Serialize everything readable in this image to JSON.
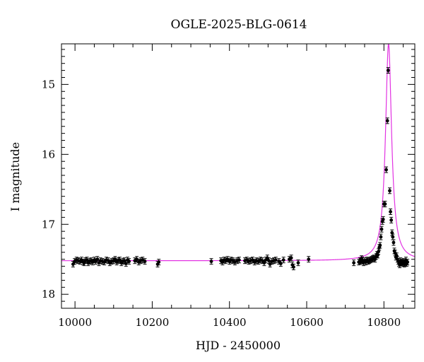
{
  "chart_data": {
    "type": "scatter",
    "title": "OGLE-2025-BLG-0614",
    "xlabel": "HJD - 2450000",
    "ylabel": "I magnitude",
    "xlim": [
      9965,
      10880
    ],
    "ylim": [
      18.2,
      14.42
    ],
    "y_inverted": true,
    "grid": false,
    "x_ticks_major": [
      10000,
      10200,
      10400,
      10600,
      10800
    ],
    "x_tick_labels": [
      "10000",
      "10200",
      "10400",
      "10600",
      "10800"
    ],
    "y_ticks_major": [
      15,
      16,
      17,
      18
    ],
    "y_tick_labels": [
      "15",
      "16",
      "17",
      "18"
    ],
    "model_color": "#e233e2",
    "point_color": "#000000",
    "model": {
      "baseline": 17.52,
      "t0": 10812,
      "peak": 14.42
    },
    "series": [
      {
        "points": [
          [
            9995,
            17.57
          ],
          [
            9999,
            17.53
          ],
          [
            10004,
            17.51
          ],
          [
            10008,
            17.52
          ],
          [
            10013,
            17.53
          ],
          [
            10017,
            17.51
          ],
          [
            10021,
            17.54
          ],
          [
            10024,
            17.55
          ],
          [
            10027,
            17.52
          ],
          [
            10031,
            17.51
          ],
          [
            10034,
            17.55
          ],
          [
            10038,
            17.53
          ],
          [
            10042,
            17.52
          ],
          [
            10046,
            17.54
          ],
          [
            10050,
            17.51
          ],
          [
            10054,
            17.53
          ],
          [
            10058,
            17.5
          ],
          [
            10062,
            17.55
          ],
          [
            10066,
            17.52
          ],
          [
            10071,
            17.53
          ],
          [
            10076,
            17.54
          ],
          [
            10081,
            17.51
          ],
          [
            10086,
            17.52
          ],
          [
            10090,
            17.55
          ],
          [
            10095,
            17.53
          ],
          [
            10100,
            17.52
          ],
          [
            10104,
            17.5
          ],
          [
            10108,
            17.54
          ],
          [
            10112,
            17.52
          ],
          [
            10116,
            17.51
          ],
          [
            10120,
            17.55
          ],
          [
            10124,
            17.53
          ],
          [
            10128,
            17.52
          ],
          [
            10132,
            17.56
          ],
          [
            10136,
            17.51
          ],
          [
            10140,
            17.53
          ],
          [
            10155,
            17.52
          ],
          [
            10160,
            17.5
          ],
          [
            10165,
            17.54
          ],
          [
            10170,
            17.52
          ],
          [
            10175,
            17.51
          ],
          [
            10181,
            17.53
          ],
          [
            10214,
            17.57
          ],
          [
            10217,
            17.54
          ],
          [
            10353,
            17.53
          ],
          [
            10378,
            17.52
          ],
          [
            10382,
            17.54
          ],
          [
            10386,
            17.51
          ],
          [
            10390,
            17.52
          ],
          [
            10395,
            17.5
          ],
          [
            10400,
            17.53
          ],
          [
            10404,
            17.51
          ],
          [
            10409,
            17.52
          ],
          [
            10414,
            17.54
          ],
          [
            10420,
            17.52
          ],
          [
            10425,
            17.51
          ],
          [
            10440,
            17.52
          ],
          [
            10445,
            17.51
          ],
          [
            10450,
            17.53
          ],
          [
            10455,
            17.52
          ],
          [
            10460,
            17.51
          ],
          [
            10465,
            17.54
          ],
          [
            10470,
            17.52
          ],
          [
            10475,
            17.53
          ],
          [
            10480,
            17.51
          ],
          [
            10485,
            17.52
          ],
          [
            10490,
            17.55
          ],
          [
            10494,
            17.51
          ],
          [
            10498,
            17.48
          ],
          [
            10502,
            17.52
          ],
          [
            10505,
            17.57
          ],
          [
            10510,
            17.53
          ],
          [
            10515,
            17.52
          ],
          [
            10520,
            17.51
          ],
          [
            10528,
            17.53
          ],
          [
            10533,
            17.56
          ],
          [
            10540,
            17.51
          ],
          [
            10555,
            17.5
          ],
          [
            10560,
            17.48
          ],
          [
            10563,
            17.58
          ],
          [
            10566,
            17.61
          ],
          [
            10578,
            17.55
          ],
          [
            10605,
            17.5
          ],
          [
            10722,
            17.55
          ],
          [
            10735,
            17.54
          ],
          [
            10738,
            17.52
          ],
          [
            10740,
            17.53
          ],
          [
            10742,
            17.49
          ],
          [
            10744,
            17.51
          ],
          [
            10747,
            17.55
          ],
          [
            10750,
            17.52
          ],
          [
            10753,
            17.54
          ],
          [
            10756,
            17.51
          ],
          [
            10759,
            17.53
          ],
          [
            10762,
            17.52
          ],
          [
            10765,
            17.51
          ],
          [
            10768,
            17.5
          ],
          [
            10771,
            17.49
          ],
          [
            10774,
            17.48
          ],
          [
            10777,
            17.5
          ],
          [
            10780,
            17.46
          ],
          [
            10782,
            17.43
          ],
          [
            10784,
            17.44
          ],
          [
            10786,
            17.39
          ],
          [
            10788,
            17.33
          ],
          [
            10790,
            17.3
          ],
          [
            10792,
            17.18
          ],
          [
            10794,
            17.07
          ],
          [
            10796,
            16.96
          ],
          [
            10798,
            16.93
          ],
          [
            10800,
            16.71
          ],
          [
            10803,
            16.71
          ],
          [
            10806,
            16.22
          ],
          [
            10809,
            15.52
          ],
          [
            10811,
            14.8
          ],
          [
            10815,
            16.52
          ],
          [
            10817,
            16.82
          ],
          [
            10819,
            16.94
          ],
          [
            10821,
            17.12
          ],
          [
            10823,
            17.18
          ],
          [
            10825,
            17.26
          ],
          [
            10827,
            17.38
          ],
          [
            10829,
            17.41
          ],
          [
            10831,
            17.47
          ],
          [
            10833,
            17.45
          ],
          [
            10835,
            17.5
          ],
          [
            10837,
            17.53
          ],
          [
            10839,
            17.56
          ],
          [
            10841,
            17.58
          ],
          [
            10843,
            17.52
          ],
          [
            10845,
            17.55
          ],
          [
            10847,
            17.54
          ],
          [
            10849,
            17.56
          ],
          [
            10851,
            17.53
          ],
          [
            10853,
            17.57
          ],
          [
            10855,
            17.55
          ],
          [
            10857,
            17.51
          ],
          [
            10859,
            17.56
          ],
          [
            10861,
            17.54
          ]
        ]
      }
    ]
  }
}
